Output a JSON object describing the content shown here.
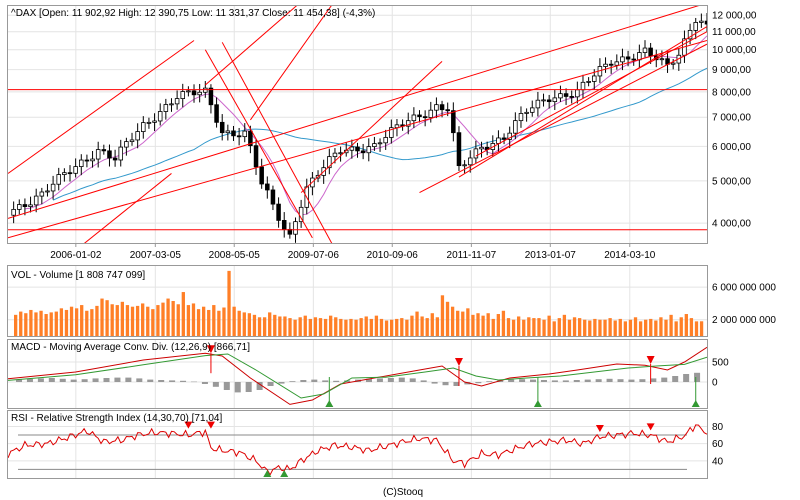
{
  "footer": "(C)Stooq",
  "colors": {
    "up_candle": "#ffffff",
    "down_candle": "#000000",
    "channel": "#ff0000",
    "ma_short": "#cc66cc",
    "ma_long": "#3399cc",
    "volume_bar": "#ff7f27",
    "macd_line": "#cc0000",
    "signal_line": "#339933",
    "histogram": "#999999",
    "rsi_line": "#dd0000",
    "sell_marker": "#ee0000",
    "buy_marker": "#339933"
  },
  "chart_data": [
    {
      "type": "candlestick",
      "title": "^DAX [Open: 11 902,92  High: 12 390,75  Low: 11 331,37  Close: 11 454,38] (-4,3%)",
      "scale": "log",
      "ylim": [
        3600,
        12600
      ],
      "xlim": [
        "2005-01",
        "2015-05"
      ],
      "y_ticks": [
        {
          "value": 4000,
          "label": "4 000,00"
        },
        {
          "value": 5000,
          "label": "5 000,00"
        },
        {
          "value": 6000,
          "label": "6 000,00"
        },
        {
          "value": 7000,
          "label": "7 000,00"
        },
        {
          "value": 8000,
          "label": "8 000,00"
        },
        {
          "value": 9000,
          "label": "9 000,00"
        },
        {
          "value": 10000,
          "label": "10 000,00"
        },
        {
          "value": 11000,
          "label": "11 000,00"
        },
        {
          "value": 12000,
          "label": "12 000,00"
        }
      ],
      "x_ticks": [
        "2006-01-02",
        "2007-03-05",
        "2008-05-05",
        "2009-07-06",
        "2010-09-06",
        "2011-11-07",
        "2013-01-07",
        "2014-03-10"
      ],
      "horizontal_lines": [
        8100,
        3860
      ],
      "close_path": [
        [
          "2005-01",
          4250
        ],
        [
          "2005-07",
          4650
        ],
        [
          "2006-01",
          5400
        ],
        [
          "2006-05",
          5900
        ],
        [
          "2006-08",
          5600
        ],
        [
          "2007-01",
          6700
        ],
        [
          "2007-07",
          7800
        ],
        [
          "2007-12",
          8000
        ],
        [
          "2008-03",
          6500
        ],
        [
          "2008-07",
          6400
        ],
        [
          "2008-10",
          4900
        ],
        [
          "2009-02",
          3900
        ],
        [
          "2009-03",
          3750
        ],
        [
          "2009-06",
          4800
        ],
        [
          "2009-12",
          5900
        ],
        [
          "2010-06",
          6000
        ],
        [
          "2010-12",
          6900
        ],
        [
          "2011-05",
          7400
        ],
        [
          "2011-07",
          7300
        ],
        [
          "2011-09",
          5300
        ],
        [
          "2012-01",
          6000
        ],
        [
          "2012-05",
          6300
        ],
        [
          "2012-09",
          7200
        ],
        [
          "2013-01",
          7800
        ],
        [
          "2013-06",
          8000
        ],
        [
          "2013-12",
          9400
        ],
        [
          "2014-06",
          9900
        ],
        [
          "2014-10",
          9100
        ],
        [
          "2014-12",
          9800
        ],
        [
          "2015-03",
          11900
        ],
        [
          "2015-05",
          11454
        ]
      ]
    },
    {
      "type": "bar",
      "title": "VOL - Volume [1 808 747 099]",
      "ylim": [
        0,
        8600000000
      ],
      "y_ticks": [
        {
          "value": 2000000000,
          "label": "2 000 000 000"
        },
        {
          "value": 6000000000,
          "label": "6 000 000 000"
        }
      ],
      "xlim": [
        "2005-01",
        "2015-05"
      ],
      "values": [
        2600000000,
        3000000000,
        2800000000,
        3200000000,
        2900000000,
        3100000000,
        2700000000,
        2900000000,
        3000000000,
        3400000000,
        3200000000,
        3600000000,
        3400000000,
        3800000000,
        3100000000,
        3300000000,
        3700000000,
        4600000000,
        4400000000,
        3900000000,
        3800000000,
        4200000000,
        3800000000,
        3600000000,
        3700000000,
        4000000000,
        3600000000,
        3300000000,
        3800000000,
        4100000000,
        4600000000,
        4300000000,
        3900000000,
        5400000000,
        3800000000,
        4000000000,
        3300000000,
        3600000000,
        3200000000,
        3800000000,
        3100000000,
        3500000000,
        8000000000,
        3600000000,
        3100000000,
        2900000000,
        2800000000,
        2600000000,
        2300000000,
        2300000000,
        2900000000,
        2600000000,
        2400000000,
        2400000000,
        2200000000,
        2000000000,
        2300000000,
        2500000000,
        2100000000,
        2300000000,
        2200000000,
        2100000000,
        2500000000,
        2300000000,
        2100000000,
        2000000000,
        2100000000,
        2000000000,
        2200000000,
        2400000000,
        2100000000,
        2500000000,
        2100000000,
        1900000000,
        2000000000,
        2100000000,
        2200000000,
        2000000000,
        2500000000,
        3000000000,
        2400000000,
        2200000000,
        2800000000,
        2300000000,
        5000000000,
        4200000000,
        3600000000,
        3100000000,
        3000000000,
        3400000000,
        2600000000,
        2800000000,
        2500000000,
        2800000000,
        2100000000,
        2700000000,
        3100000000,
        2200000000,
        2000000000,
        2400000000,
        2000000000,
        2300000000,
        2200000000,
        2200000000,
        2000000000,
        2500000000,
        1800000000,
        2200000000,
        2600000000,
        2000000000,
        2300000000,
        2200000000,
        2000000000,
        1900000000,
        2100000000,
        2000000000,
        2000000000,
        2200000000,
        1900000000,
        2100000000,
        1800000000,
        2000000000,
        2300000000,
        1800000000,
        2000000000,
        2100000000,
        1900000000,
        2300000000,
        2000000000,
        2600000000,
        1800000000,
        2300000000,
        2700000000,
        2200000000,
        1800000000,
        1808747099
      ]
    },
    {
      "type": "line",
      "title": "MACD - Moving Average Conv. Div. (12,26,9) [866,71]",
      "ylim": [
        -650,
        1050
      ],
      "y_ticks": [
        {
          "value": 0,
          "label": "0"
        },
        {
          "value": 500,
          "label": "500"
        }
      ],
      "xlim": [
        "2005-01",
        "2015-05"
      ],
      "series": [
        {
          "role": "macd",
          "x": [
            "2005-01",
            "2006-01",
            "2007-01",
            "2007-12",
            "2008-03",
            "2008-08",
            "2009-03",
            "2009-07",
            "2009-12",
            "2010-06",
            "2011-02",
            "2011-06",
            "2011-10",
            "2012-01",
            "2012-06",
            "2013-01",
            "2013-06",
            "2014-01",
            "2014-06",
            "2014-10",
            "2015-01",
            "2015-05"
          ],
          "values": [
            80,
            250,
            550,
            720,
            650,
            100,
            -560,
            -450,
            -50,
            100,
            300,
            400,
            0,
            -100,
            100,
            200,
            300,
            450,
            420,
            300,
            500,
            867
          ]
        },
        {
          "role": "signal",
          "x": [
            "2005-01",
            "2006-01",
            "2007-01",
            "2007-12",
            "2008-04",
            "2008-09",
            "2009-05",
            "2009-09",
            "2010-02",
            "2010-08",
            "2011-03",
            "2011-08",
            "2011-12",
            "2012-04",
            "2012-09",
            "2013-03",
            "2013-09",
            "2014-03",
            "2014-08",
            "2015-01",
            "2015-05"
          ],
          "values": [
            40,
            180,
            430,
            660,
            700,
            300,
            -400,
            -300,
            100,
            120,
            250,
            350,
            150,
            50,
            100,
            150,
            250,
            350,
            400,
            440,
            620
          ]
        }
      ],
      "histogram": [
        60,
        80,
        90,
        100,
        80,
        60,
        70,
        90,
        100,
        110,
        110,
        90,
        60,
        50,
        40,
        30,
        10,
        -50,
        -120,
        -200,
        -260,
        -250,
        -200,
        -100,
        -40,
        20,
        50,
        60,
        40,
        30,
        40,
        60,
        80,
        90,
        100,
        110,
        90,
        40,
        -40,
        -80,
        -100,
        -60,
        -30,
        20,
        50,
        60,
        70,
        60,
        50,
        40,
        40,
        50,
        60,
        70,
        80,
        70,
        60,
        70,
        90,
        110,
        150,
        200,
        230
      ],
      "markers": [
        {
          "kind": "sell",
          "x": "2008-01",
          "value": 720
        },
        {
          "kind": "buy",
          "x": "2009-10",
          "value": -560
        },
        {
          "kind": "sell",
          "x": "2011-09",
          "value": 400
        },
        {
          "kind": "buy",
          "x": "2012-11",
          "value": -560
        },
        {
          "kind": "sell",
          "x": "2014-07",
          "value": 450
        },
        {
          "kind": "buy",
          "x": "2015-03",
          "value": -560
        }
      ]
    },
    {
      "type": "line",
      "title": "RSI - Relative Strength Index (14,30,70) [71,04]",
      "ylim": [
        20,
        98
      ],
      "y_ticks": [
        {
          "value": 40,
          "label": "40"
        },
        {
          "value": 60,
          "label": "60"
        },
        {
          "value": 80,
          "label": "80"
        }
      ],
      "reference_lines": [
        30,
        70
      ],
      "xlim": [
        "2005-01",
        "2015-05"
      ],
      "x": [
        "2005-01",
        "2005-04",
        "2005-08",
        "2005-12",
        "2006-03",
        "2006-06",
        "2006-09",
        "2006-12",
        "2007-03",
        "2007-06",
        "2007-09",
        "2007-12",
        "2008-01",
        "2008-03",
        "2008-06",
        "2008-09",
        "2008-11",
        "2009-01",
        "2009-03",
        "2009-05",
        "2009-08",
        "2009-11",
        "2010-02",
        "2010-05",
        "2010-08",
        "2010-11",
        "2011-02",
        "2011-05",
        "2011-08",
        "2011-10",
        "2012-01",
        "2012-04",
        "2012-07",
        "2012-10",
        "2013-01",
        "2013-04",
        "2013-07",
        "2013-10",
        "2014-01",
        "2014-04",
        "2014-07",
        "2014-10",
        "2015-01",
        "2015-03",
        "2015-05"
      ],
      "values": [
        48,
        58,
        60,
        68,
        75,
        62,
        64,
        70,
        73,
        72,
        70,
        74,
        55,
        52,
        50,
        40,
        27,
        32,
        30,
        40,
        52,
        58,
        56,
        52,
        57,
        62,
        66,
        64,
        40,
        37,
        48,
        47,
        54,
        60,
        62,
        64,
        60,
        68,
        70,
        72,
        70,
        62,
        69,
        82,
        71
      ]
    }
  ]
}
